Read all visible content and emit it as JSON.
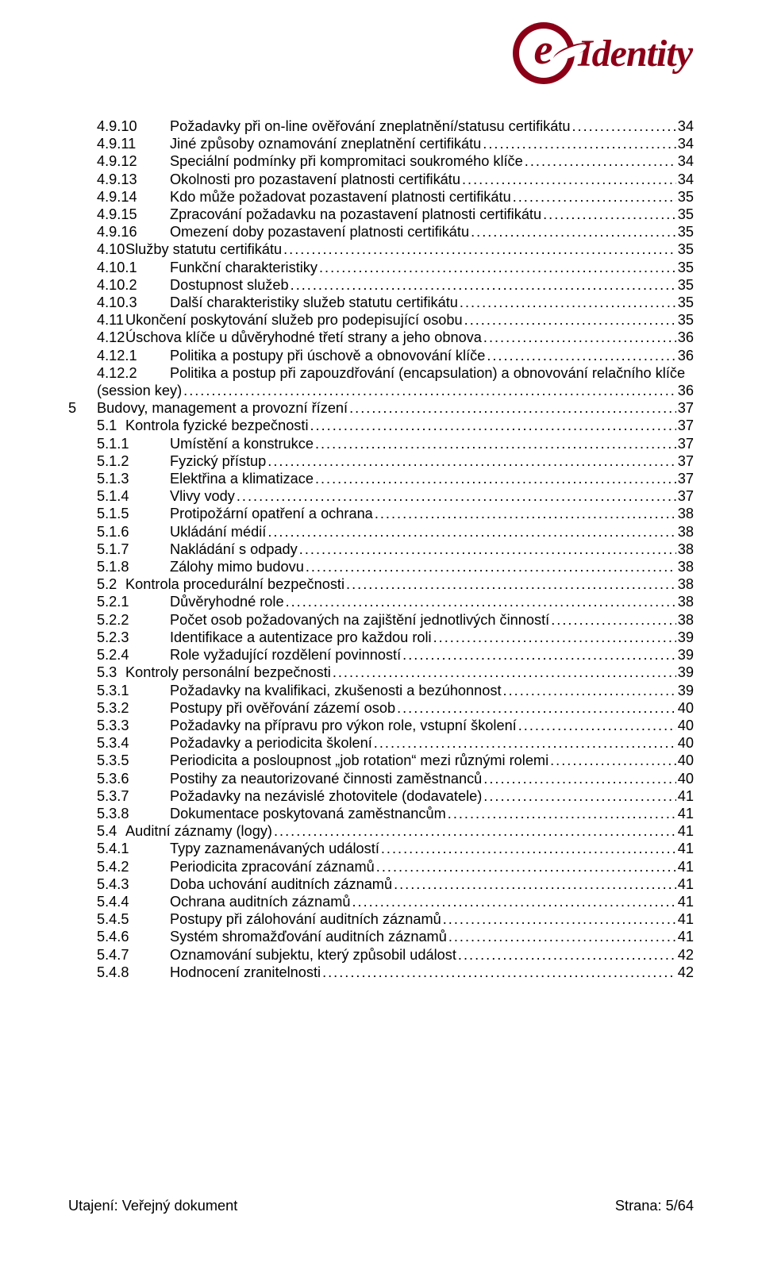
{
  "logo": {
    "text": "Identity"
  },
  "footer": {
    "left": "Utajení: Veřejný dokument",
    "right": "Strana: 5/64"
  },
  "toc": [
    {
      "lvl": 3,
      "num": "4.9.10",
      "t": "Požadavky při on-line ověřování zneplatnění/statusu certifikátu",
      "p": "34"
    },
    {
      "lvl": 3,
      "num": "4.9.11",
      "t": "Jiné způsoby oznamování zneplatnění certifikátu",
      "p": "34"
    },
    {
      "lvl": 3,
      "num": "4.9.12",
      "t": "Speciální podmínky při kompromitaci soukromého klíče",
      "p": "34"
    },
    {
      "lvl": 3,
      "num": "4.9.13",
      "t": "Okolnosti pro pozastavení platnosti certifikátu",
      "p": "34"
    },
    {
      "lvl": 3,
      "num": "4.9.14",
      "t": "Kdo může požadovat pozastavení platnosti certifikátu",
      "p": "35"
    },
    {
      "lvl": 3,
      "num": "4.9.15",
      "t": "Zpracování požadavku na pozastavení platnosti certifikátu",
      "p": "35"
    },
    {
      "lvl": 3,
      "num": "4.9.16",
      "t": "Omezení doby pozastavení platnosti certifikátu",
      "p": "35"
    },
    {
      "lvl": 2,
      "num": "4.10",
      "t": "Služby statutu certifikátu",
      "p": "35"
    },
    {
      "lvl": 3,
      "num": "4.10.1",
      "t": "Funkční charakteristiky",
      "p": "35"
    },
    {
      "lvl": 3,
      "num": "4.10.2",
      "t": "Dostupnost služeb",
      "p": "35"
    },
    {
      "lvl": 3,
      "num": "4.10.3",
      "t": "Další charakteristiky služeb statutu certifikátu",
      "p": "35"
    },
    {
      "lvl": 2,
      "num": "4.11",
      "t": "Ukončení poskytování služeb pro podepisující osobu",
      "p": "35"
    },
    {
      "lvl": 2,
      "num": "4.12",
      "t": "Úschova klíče u důvěryhodné třetí strany a jeho obnova",
      "p": "36"
    },
    {
      "lvl": 3,
      "num": "4.12.1",
      "t": "Politika a postupy při úschově a obnovování klíče",
      "p": "36"
    },
    {
      "lvl": "wrap",
      "num": "4.12.2",
      "t": "Politika a postup při zapouzdřování (encapsulation) a obnovování relačního klíče",
      "p": ""
    },
    {
      "lvl": "sess",
      "num": "",
      "t": "(session key)",
      "p": "36"
    },
    {
      "lvl": 1,
      "num": "5",
      "t": "Budovy, management a provozní řízení",
      "p": "37"
    },
    {
      "lvl": 2,
      "num": "5.1",
      "t": "Kontrola fyzické bezpečnosti",
      "p": "37"
    },
    {
      "lvl": 3,
      "num": "5.1.1",
      "t": "Umístění a konstrukce",
      "p": "37"
    },
    {
      "lvl": 3,
      "num": "5.1.2",
      "t": "Fyzický přístup",
      "p": "37"
    },
    {
      "lvl": 3,
      "num": "5.1.3",
      "t": "Elektřina a klimatizace",
      "p": "37"
    },
    {
      "lvl": 3,
      "num": "5.1.4",
      "t": "Vlivy vody",
      "p": "37"
    },
    {
      "lvl": 3,
      "num": "5.1.5",
      "t": "Protipožární opatření a ochrana",
      "p": "38"
    },
    {
      "lvl": 3,
      "num": "5.1.6",
      "t": "Ukládání médií",
      "p": "38"
    },
    {
      "lvl": 3,
      "num": "5.1.7",
      "t": "Nakládání s odpady",
      "p": "38"
    },
    {
      "lvl": 3,
      "num": "5.1.8",
      "t": "Zálohy mimo budovu",
      "p": "38"
    },
    {
      "lvl": 2,
      "num": "5.2",
      "t": "Kontrola procedurální bezpečnosti",
      "p": "38"
    },
    {
      "lvl": 3,
      "num": "5.2.1",
      "t": "Důvěryhodné role",
      "p": "38"
    },
    {
      "lvl": 3,
      "num": "5.2.2",
      "t": "Počet osob požadovaných na zajištění jednotlivých činností",
      "p": "38"
    },
    {
      "lvl": 3,
      "num": "5.2.3",
      "t": "Identifikace a autentizace pro každou roli",
      "p": "39"
    },
    {
      "lvl": 3,
      "num": "5.2.4",
      "t": "Role vyžadující rozdělení povinností",
      "p": "39"
    },
    {
      "lvl": 2,
      "num": "5.3",
      "t": "Kontroly personální bezpečnosti",
      "p": "39"
    },
    {
      "lvl": 3,
      "num": "5.3.1",
      "t": "Požadavky na kvalifikaci, zkušenosti a bezúhonnost",
      "p": "39"
    },
    {
      "lvl": 3,
      "num": "5.3.2",
      "t": "Postupy při ověřování zázemí osob",
      "p": "40"
    },
    {
      "lvl": 3,
      "num": "5.3.3",
      "t": "Požadavky na přípravu pro výkon role, vstupní školení",
      "p": "40"
    },
    {
      "lvl": 3,
      "num": "5.3.4",
      "t": "Požadavky a periodicita školení",
      "p": "40"
    },
    {
      "lvl": 3,
      "num": "5.3.5",
      "t": "Periodicita a posloupnost „job rotation“ mezi různými rolemi",
      "p": "40"
    },
    {
      "lvl": 3,
      "num": "5.3.6",
      "t": "Postihy za neautorizované činnosti zaměstnanců",
      "p": "40"
    },
    {
      "lvl": 3,
      "num": "5.3.7",
      "t": "Požadavky na nezávislé zhotovitele (dodavatele)",
      "p": "41"
    },
    {
      "lvl": 3,
      "num": "5.3.8",
      "t": "Dokumentace poskytovaná zaměstnancům",
      "p": "41"
    },
    {
      "lvl": 2,
      "num": "5.4",
      "t": "Auditní záznamy (logy)",
      "p": "41"
    },
    {
      "lvl": 3,
      "num": "5.4.1",
      "t": "Typy zaznamenávaných událostí",
      "p": "41"
    },
    {
      "lvl": 3,
      "num": "5.4.2",
      "t": "Periodicita zpracování záznamů",
      "p": "41"
    },
    {
      "lvl": 3,
      "num": "5.4.3",
      "t": "Doba uchování auditních záznamů",
      "p": "41"
    },
    {
      "lvl": 3,
      "num": "5.4.4",
      "t": "Ochrana auditních záznamů",
      "p": "41"
    },
    {
      "lvl": 3,
      "num": "5.4.5",
      "t": "Postupy při zálohování auditních záznamů",
      "p": "41"
    },
    {
      "lvl": 3,
      "num": "5.4.6",
      "t": "Systém shromažďování auditních záznamů",
      "p": "41"
    },
    {
      "lvl": 3,
      "num": "5.4.7",
      "t": "Oznamování subjektu, který způsobil událost",
      "p": "42"
    },
    {
      "lvl": 3,
      "num": "5.4.8",
      "t": "Hodnocení zranitelnosti",
      "p": "42"
    }
  ]
}
